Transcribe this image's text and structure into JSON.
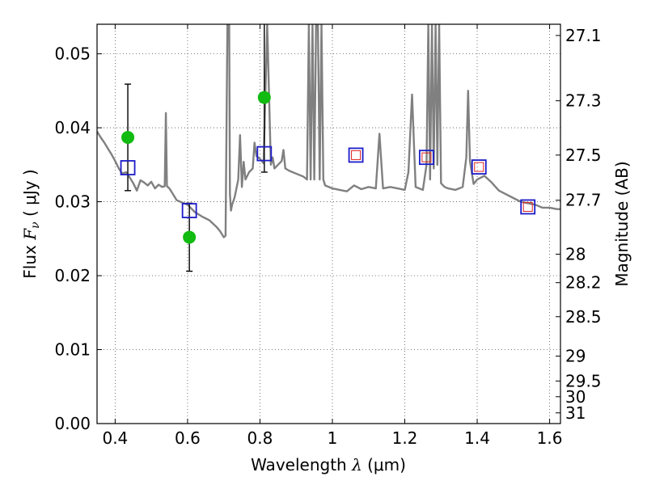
{
  "chart_data": {
    "type": "line",
    "xlabel": "Wavelength  λ (μm)",
    "xlabel_parts": {
      "prefix": "Wavelength  ",
      "symbol": "λ",
      "unit": " (μm)"
    },
    "ylabel_parts": {
      "prefix": "Flux  ",
      "symbol": "F",
      "subscript": "ν",
      "unit": "  ( μJy )"
    },
    "ylabel": "Flux  Fν  ( μJy )",
    "ylabel_right": "Magnitude (AB)",
    "xlim": [
      0.35,
      1.63
    ],
    "ylim": [
      0.0,
      0.054
    ],
    "grid": true,
    "x_ticks": [
      0.4,
      0.6,
      0.8,
      1.0,
      1.2,
      1.4,
      1.6
    ],
    "x_tick_labels": [
      "0.4",
      "0.6",
      "0.8",
      "1",
      "1.2",
      "1.4",
      "1.6"
    ],
    "y_ticks": [
      0.0,
      0.01,
      0.02,
      0.03,
      0.04,
      0.05
    ],
    "y_tick_labels": [
      "0.00",
      "0.01",
      "0.02",
      "0.03",
      "0.04",
      "0.05"
    ],
    "right_ticks": [
      {
        "mag": 27.1,
        "label": "27.1"
      },
      {
        "mag": 27.3,
        "label": "27.3"
      },
      {
        "mag": 27.5,
        "label": "27.5"
      },
      {
        "mag": 27.7,
        "label": "27.7"
      },
      {
        "mag": 28.0,
        "label": "28"
      },
      {
        "mag": 28.2,
        "label": "28.2"
      },
      {
        "mag": 28.5,
        "label": "28.5"
      },
      {
        "mag": 29.0,
        "label": "29"
      },
      {
        "mag": 29.5,
        "label": "29.5"
      },
      {
        "mag": 30.0,
        "label": "30"
      },
      {
        "mag": 31.0,
        "label": "31"
      }
    ],
    "colors": {
      "model_line": "#808080",
      "observed": "#11bb11",
      "model_boxes": "#1c1cc8",
      "red_boxes": "#dd2222",
      "grid": "#555555",
      "errorbar": "#000000"
    },
    "series": [
      {
        "name": "model spectrum",
        "style": "line",
        "x": [
          0.35,
          0.36,
          0.37,
          0.38,
          0.39,
          0.4,
          0.41,
          0.42,
          0.43,
          0.44,
          0.45,
          0.46,
          0.47,
          0.48,
          0.49,
          0.5,
          0.51,
          0.52,
          0.53,
          0.537,
          0.54,
          0.543,
          0.55,
          0.56,
          0.57,
          0.58,
          0.59,
          0.6,
          0.62,
          0.64,
          0.66,
          0.68,
          0.69,
          0.7,
          0.705,
          0.71,
          0.715,
          0.717,
          0.72,
          0.723,
          0.73,
          0.74,
          0.745,
          0.75,
          0.755,
          0.76,
          0.77,
          0.78,
          0.785,
          0.79,
          0.8,
          0.81,
          0.82,
          0.83,
          0.835,
          0.84,
          0.85,
          0.86,
          0.865,
          0.87,
          0.88,
          0.9,
          0.92,
          0.93,
          0.935,
          0.94,
          0.945,
          0.95,
          0.955,
          0.96,
          0.965,
          0.97,
          0.975,
          0.98,
          1.0,
          1.02,
          1.04,
          1.06,
          1.08,
          1.1,
          1.12,
          1.13,
          1.14,
          1.16,
          1.18,
          1.2,
          1.21,
          1.22,
          1.23,
          1.24,
          1.25,
          1.26,
          1.265,
          1.27,
          1.275,
          1.28,
          1.285,
          1.29,
          1.295,
          1.3,
          1.31,
          1.32,
          1.34,
          1.36,
          1.37,
          1.375,
          1.38,
          1.39,
          1.4,
          1.42,
          1.44,
          1.46,
          1.48,
          1.5,
          1.52,
          1.54,
          1.56,
          1.58,
          1.6,
          1.62,
          1.63
        ],
        "y": [
          0.0395,
          0.0387,
          0.038,
          0.0372,
          0.0364,
          0.0355,
          0.0345,
          0.0338,
          0.034,
          0.0333,
          0.0325,
          0.0315,
          0.0329,
          0.0326,
          0.0322,
          0.0327,
          0.0318,
          0.0323,
          0.032,
          0.0321,
          0.042,
          0.0321,
          0.0318,
          0.031,
          0.0302,
          0.03,
          0.0298,
          0.0296,
          0.0286,
          0.028,
          0.0275,
          0.0266,
          0.026,
          0.0252,
          0.0254,
          0.054,
          0.054,
          0.031,
          0.0288,
          0.0296,
          0.0306,
          0.033,
          0.039,
          0.032,
          0.0354,
          0.033,
          0.034,
          0.0345,
          0.038,
          0.0362,
          0.0358,
          0.0352,
          0.054,
          0.035,
          0.036,
          0.0345,
          0.035,
          0.0355,
          0.037,
          0.0345,
          0.0342,
          0.0338,
          0.0334,
          0.033,
          0.054,
          0.033,
          0.054,
          0.033,
          0.054,
          0.054,
          0.033,
          0.054,
          0.033,
          0.0322,
          0.0318,
          0.0316,
          0.0314,
          0.0322,
          0.0317,
          0.032,
          0.0318,
          0.0392,
          0.0318,
          0.032,
          0.0318,
          0.0316,
          0.034,
          0.0445,
          0.032,
          0.0318,
          0.0316,
          0.035,
          0.054,
          0.033,
          0.054,
          0.0345,
          0.054,
          0.035,
          0.054,
          0.0325,
          0.032,
          0.0318,
          0.0316,
          0.032,
          0.036,
          0.045,
          0.0355,
          0.0324,
          0.033,
          0.0335,
          0.0326,
          0.0315,
          0.031,
          0.0305,
          0.03,
          0.0298,
          0.0296,
          0.0292,
          0.0292,
          0.029,
          0.029
        ]
      },
      {
        "name": "observed photometry",
        "style": "marker-circle",
        "x": [
          0.435,
          0.605,
          0.812
        ],
        "y": [
          0.0387,
          0.0252,
          0.0441
        ],
        "yerr_low": [
          0.0072,
          0.0046,
          0.0101
        ],
        "yerr_high": [
          0.0072,
          0.0046,
          0.0101
        ]
      },
      {
        "name": "model fluxes",
        "style": "marker-square-open",
        "x": [
          0.435,
          0.605,
          0.812,
          1.065,
          1.26,
          1.405,
          1.54
        ],
        "y": [
          0.0346,
          0.0288,
          0.0365,
          0.0363,
          0.036,
          0.0347,
          0.0293
        ]
      },
      {
        "name": "red squares",
        "style": "marker-square-small",
        "x": [
          1.065,
          1.26,
          1.405,
          1.54
        ],
        "y": [
          0.0363,
          0.036,
          0.0347,
          0.0293
        ]
      }
    ]
  }
}
